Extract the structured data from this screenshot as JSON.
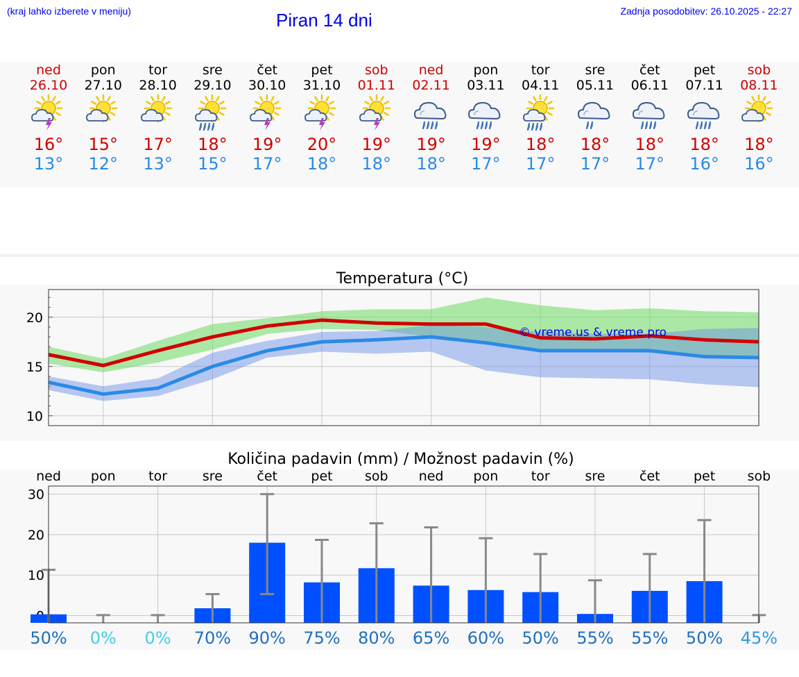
{
  "header": {
    "menu_hint": "(kraj lahko izberete v meniju)",
    "title": "Piran 14 dni",
    "updated": "Zadnja posodobitev: 26.10.2025 - 22:27"
  },
  "colors": {
    "max": "#d00000",
    "min": "#2a8ae6",
    "weekend": "#d00000",
    "bar": "#0050ff",
    "link": "#0000ee"
  },
  "days": [
    {
      "name": "ned",
      "date": "26.10",
      "weekend": true,
      "icon": "sun-cloud-thunder-icon",
      "tmax": "16°",
      "tmin": "13°"
    },
    {
      "name": "pon",
      "date": "27.10",
      "weekend": false,
      "icon": "sun-cloud-icon",
      "tmax": "15°",
      "tmin": "12°"
    },
    {
      "name": "tor",
      "date": "28.10",
      "weekend": false,
      "icon": "sun-cloud-icon",
      "tmax": "17°",
      "tmin": "13°"
    },
    {
      "name": "sre",
      "date": "29.10",
      "weekend": false,
      "icon": "sun-cloud-rain-icon",
      "tmax": "18°",
      "tmin": "15°"
    },
    {
      "name": "čet",
      "date": "30.10",
      "weekend": false,
      "icon": "sun-cloud-thunder-icon",
      "tmax": "19°",
      "tmin": "17°"
    },
    {
      "name": "pet",
      "date": "31.10",
      "weekend": false,
      "icon": "sun-cloud-thunder-icon",
      "tmax": "20°",
      "tmin": "18°"
    },
    {
      "name": "sob",
      "date": "01.11",
      "weekend": true,
      "icon": "sun-cloud-thunder-icon",
      "tmax": "19°",
      "tmin": "18°"
    },
    {
      "name": "ned",
      "date": "02.11",
      "weekend": true,
      "icon": "cloud-rain-icon",
      "tmax": "19°",
      "tmin": "18°"
    },
    {
      "name": "pon",
      "date": "03.11",
      "weekend": false,
      "icon": "cloud-rain-icon",
      "tmax": "19°",
      "tmin": "17°"
    },
    {
      "name": "tor",
      "date": "04.11",
      "weekend": false,
      "icon": "sun-cloud-rain-icon",
      "tmax": "18°",
      "tmin": "17°"
    },
    {
      "name": "sre",
      "date": "05.11",
      "weekend": false,
      "icon": "cloud-rain-light-icon",
      "tmax": "18°",
      "tmin": "17°"
    },
    {
      "name": "čet",
      "date": "06.11",
      "weekend": false,
      "icon": "cloud-rain-icon",
      "tmax": "18°",
      "tmin": "17°"
    },
    {
      "name": "pet",
      "date": "07.11",
      "weekend": false,
      "icon": "cloud-rain-icon",
      "tmax": "18°",
      "tmin": "16°"
    },
    {
      "name": "sob",
      "date": "08.11",
      "weekend": true,
      "icon": "sun-cloud-icon",
      "tmax": "18°",
      "tmin": "16°"
    }
  ],
  "chart_data": [
    {
      "type": "line",
      "title": "Temperatura (°C)",
      "ylim": [
        9,
        22.8
      ],
      "yticks": [
        10,
        15,
        20
      ],
      "grid": true,
      "watermark": "© vreme.us & vreme.pro",
      "x": [
        0,
        1,
        2,
        3,
        4,
        5,
        6,
        7,
        8,
        9,
        10,
        11,
        12,
        13
      ],
      "series": [
        {
          "role": "max",
          "values": [
            16.2,
            15.1,
            16.6,
            18.0,
            19.1,
            19.7,
            19.4,
            19.3,
            19.3,
            17.9,
            17.8,
            18.1,
            17.7,
            17.5
          ],
          "band_low": [
            15.3,
            14.4,
            15.4,
            16.7,
            18.3,
            18.8,
            18.7,
            18.0,
            17.5,
            16.6,
            16.5,
            16.4,
            16.0,
            15.8
          ],
          "band_high": [
            17.0,
            15.8,
            17.6,
            19.3,
            19.9,
            20.6,
            20.8,
            20.8,
            22.0,
            21.2,
            20.7,
            20.9,
            20.6,
            20.5
          ]
        },
        {
          "role": "min",
          "values": [
            13.4,
            12.2,
            12.8,
            15.0,
            16.6,
            17.5,
            17.7,
            18.0,
            17.4,
            16.6,
            16.6,
            16.6,
            16.0,
            15.9
          ],
          "band_low": [
            12.6,
            11.5,
            12.0,
            13.7,
            15.9,
            16.5,
            16.3,
            16.5,
            14.6,
            13.9,
            13.8,
            13.7,
            13.2,
            12.9
          ],
          "band_high": [
            14.0,
            13.0,
            13.8,
            16.4,
            17.6,
            18.5,
            18.6,
            19.2,
            19.0,
            18.5,
            18.3,
            18.3,
            18.8,
            18.9
          ]
        }
      ]
    },
    {
      "type": "bar",
      "title": "Količina padavin (mm) / Možnost padavin (%)",
      "categories": [
        "ned",
        "pon",
        "tor",
        "sre",
        "čet",
        "pet",
        "sob",
        "ned",
        "pon",
        "tor",
        "sre",
        "čet",
        "pet",
        "sob"
      ],
      "values": [
        0.3,
        0,
        0,
        1.8,
        18.0,
        8.2,
        11.7,
        7.4,
        6.3,
        5.8,
        0.4,
        6.1,
        8.5,
        0
      ],
      "err_low": [
        0,
        0,
        0,
        0,
        5.3,
        0,
        0,
        0,
        0,
        0,
        0,
        0,
        0,
        0
      ],
      "err_high": [
        11.3,
        0.1,
        0.1,
        5.3,
        30.0,
        18.7,
        22.8,
        21.8,
        19.1,
        15.2,
        8.7,
        15.2,
        23.6,
        0.1
      ],
      "probability": [
        "50%",
        "0%",
        "0%",
        "70%",
        "90%",
        "75%",
        "80%",
        "65%",
        "60%",
        "50%",
        "55%",
        "55%",
        "50%",
        "45%"
      ],
      "prob_colors": [
        "#1f6fc0",
        "#44ccee",
        "#44ccee",
        "#1f6fc0",
        "#1f6fc0",
        "#1f6fc0",
        "#1f6fc0",
        "#1f6fc0",
        "#1f6fc0",
        "#1f6fc0",
        "#1f6fc0",
        "#1f6fc0",
        "#1f6fc0",
        "#3399dd"
      ],
      "ylim": [
        -1.8,
        32
      ],
      "yticks": [
        0,
        10,
        20,
        30
      ],
      "grid": true
    }
  ]
}
